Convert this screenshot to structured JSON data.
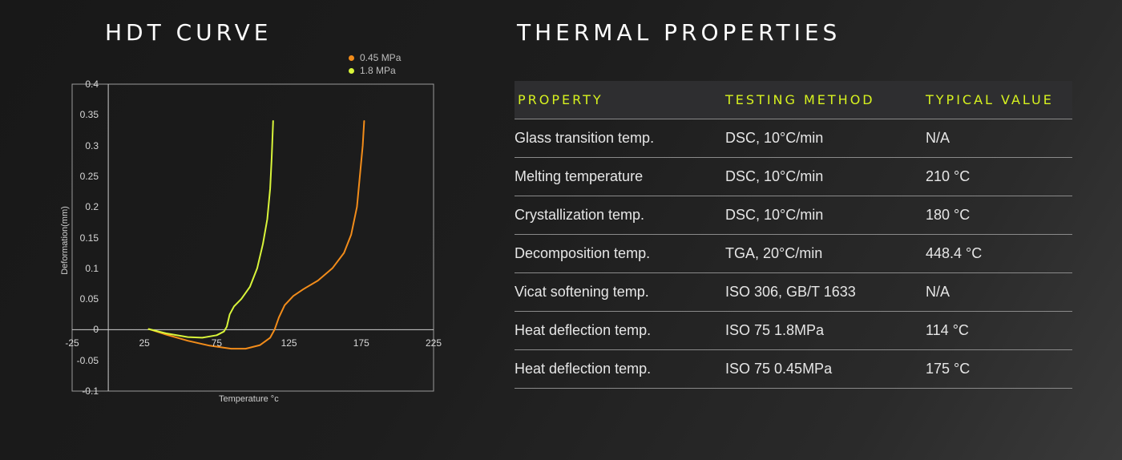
{
  "hdt_title": "HDT CURVE",
  "thermal_title": "THERMAL PROPERTIES",
  "colors": {
    "accent": "#d7f21f",
    "series_045": "#f28c1a",
    "series_18": "#d9f53a"
  },
  "chart_data": {
    "type": "line",
    "xlabel": "Temperature  °c",
    "ylabel": "Deformation(mm)",
    "xlim": [
      -25,
      225
    ],
    "ylim": [
      -0.1,
      0.4
    ],
    "x_ticks": [
      -25,
      25,
      75,
      125,
      175,
      225
    ],
    "x_tick_labels": [
      "-25",
      "25",
      "75",
      "125",
      "175",
      "225"
    ],
    "y_ticks": [
      0.4,
      0.35,
      0.3,
      0.25,
      0.2,
      0.15,
      0.1,
      0.05,
      0,
      -0.05,
      -0.1
    ],
    "y_tick_labels": [
      "0.4",
      "0.35",
      "0.3",
      "0.25",
      "0.2",
      "0.15",
      "0.1",
      "0.05",
      "0",
      "-0.05",
      "-0.1"
    ],
    "legend_position": "top-right",
    "series": [
      {
        "name": "0.45 MPa",
        "color": "#f28c1a",
        "points": [
          [
            28,
            0.001
          ],
          [
            40,
            -0.008
          ],
          [
            55,
            -0.018
          ],
          [
            70,
            -0.026
          ],
          [
            85,
            -0.031
          ],
          [
            95,
            -0.031
          ],
          [
            105,
            -0.025
          ],
          [
            112,
            -0.013
          ],
          [
            115,
            0.0
          ],
          [
            118,
            0.02
          ],
          [
            122,
            0.04
          ],
          [
            128,
            0.055
          ],
          [
            135,
            0.066
          ],
          [
            145,
            0.08
          ],
          [
            155,
            0.1
          ],
          [
            163,
            0.125
          ],
          [
            168,
            0.155
          ],
          [
            172,
            0.2
          ],
          [
            174,
            0.25
          ],
          [
            176,
            0.3
          ],
          [
            177,
            0.34
          ]
        ]
      },
      {
        "name": "1.8 MPa",
        "color": "#d9f53a",
        "points": [
          [
            28,
            0.001
          ],
          [
            40,
            -0.006
          ],
          [
            55,
            -0.012
          ],
          [
            65,
            -0.013
          ],
          [
            75,
            -0.009
          ],
          [
            80,
            -0.003
          ],
          [
            82,
            0.005
          ],
          [
            84,
            0.025
          ],
          [
            87,
            0.038
          ],
          [
            92,
            0.05
          ],
          [
            98,
            0.07
          ],
          [
            103,
            0.1
          ],
          [
            107,
            0.14
          ],
          [
            110,
            0.18
          ],
          [
            112,
            0.23
          ],
          [
            113,
            0.28
          ],
          [
            114,
            0.34
          ]
        ]
      }
    ]
  },
  "table": {
    "headers": [
      "PROPERTY",
      "TESTING METHOD",
      "TYPICAL VALUE"
    ],
    "rows": [
      [
        "Glass transition temp.",
        "DSC, 10°C/min",
        "N/A"
      ],
      [
        "Melting temperature",
        "DSC, 10°C/min",
        "210 °C"
      ],
      [
        "Crystallization temp.",
        "DSC, 10°C/min",
        "180 °C"
      ],
      [
        "Decomposition temp.",
        "TGA, 20°C/min",
        "448.4 °C"
      ],
      [
        "Vicat softening temp.",
        "ISO 306, GB/T 1633",
        "N/A"
      ],
      [
        "Heat deflection temp.",
        "ISO 75 1.8MPa",
        "114 °C"
      ],
      [
        "Heat deflection temp.",
        "ISO 75 0.45MPa",
        "175 °C"
      ]
    ]
  }
}
